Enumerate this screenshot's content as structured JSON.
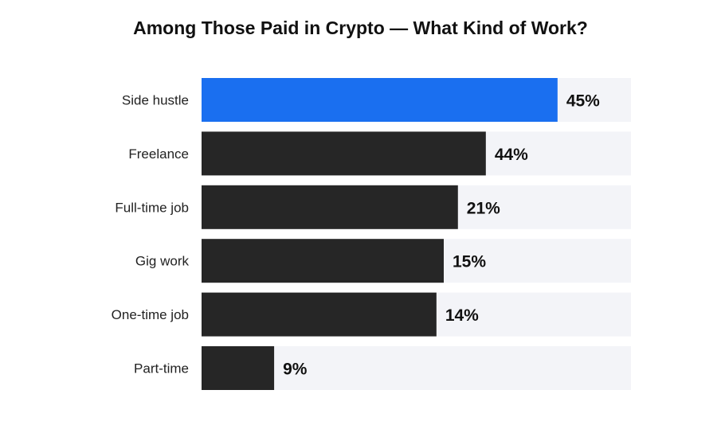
{
  "chart_data": {
    "type": "bar",
    "orientation": "horizontal",
    "title": "Among Those Paid in Crypto — What Kind of Work?",
    "categories": [
      "Side hustle",
      "Freelance",
      "Full-time job",
      "Gig work",
      "One-time job",
      "Part-time"
    ],
    "values": [
      45,
      44,
      21,
      15,
      14,
      9
    ],
    "value_labels": [
      "45%",
      "44%",
      "21%",
      "15%",
      "14%",
      "9%"
    ],
    "highlight_index": 0,
    "colors": {
      "highlight": "#1a6ff0",
      "bar": "#262626",
      "track": "#f3f4f8"
    },
    "xlabel": "",
    "ylabel": "",
    "grid": false
  }
}
